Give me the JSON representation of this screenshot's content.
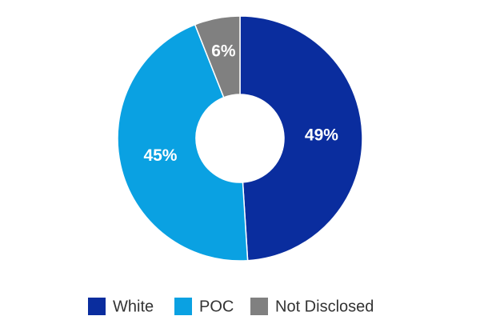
{
  "chart_data": {
    "type": "donut",
    "categories": [
      "White",
      "POC",
      "Not Disclosed"
    ],
    "values": [
      49,
      45,
      6
    ],
    "value_labels": [
      "49%",
      "45%",
      "6%"
    ],
    "colors": [
      "#0a2d9e",
      "#0aa1e2",
      "#808080"
    ],
    "legend": "bottom"
  }
}
